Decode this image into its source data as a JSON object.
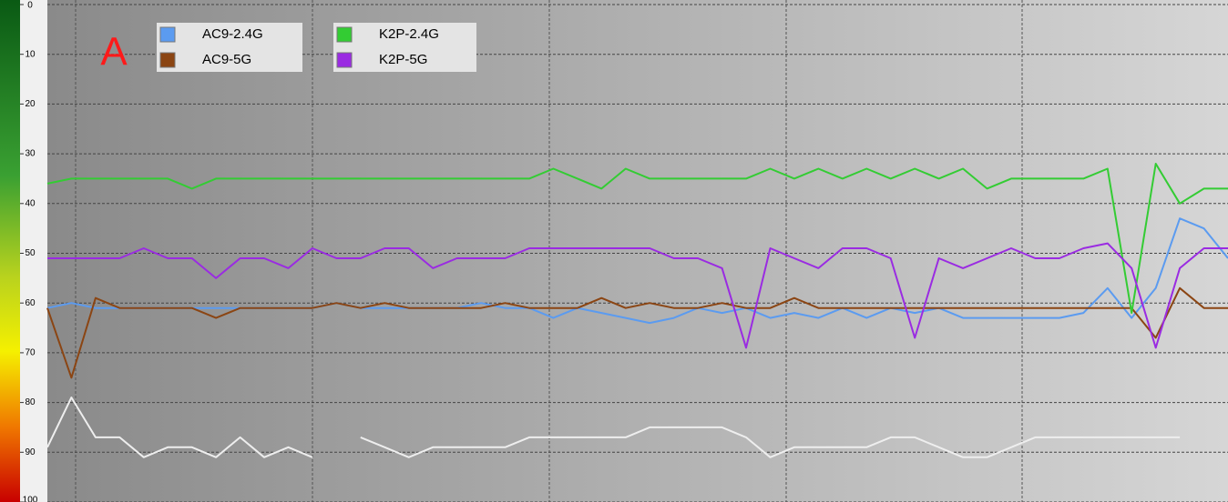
{
  "chart_data": {
    "type": "line",
    "annotation": "A",
    "ylim": [
      0,
      100
    ],
    "yticks": [
      0,
      10,
      20,
      30,
      40,
      50,
      60,
      70,
      80,
      90,
      100
    ],
    "y_inverted": true,
    "grid": true,
    "xlim": [
      0,
      49
    ],
    "x": [
      0,
      1,
      2,
      3,
      4,
      5,
      6,
      7,
      8,
      9,
      10,
      11,
      12,
      13,
      14,
      15,
      16,
      17,
      18,
      19,
      20,
      21,
      22,
      23,
      24,
      25,
      26,
      27,
      28,
      29,
      30,
      31,
      32,
      33,
      34,
      35,
      36,
      37,
      38,
      39,
      40,
      41,
      42,
      43,
      44,
      45,
      46,
      47,
      48,
      49
    ],
    "legend": "top-left",
    "series": [
      {
        "name": "AC9-2.4G",
        "color": "#5b9bf0",
        "values": [
          61,
          60,
          61,
          61,
          61,
          61,
          61,
          61,
          61,
          61,
          61,
          61,
          60,
          61,
          61,
          61,
          61,
          61,
          60,
          61,
          61,
          63,
          61,
          62,
          63,
          64,
          63,
          61,
          62,
          61,
          63,
          62,
          63,
          61,
          63,
          61,
          62,
          61,
          63,
          63,
          63,
          63,
          63,
          62,
          57,
          63,
          57,
          43,
          45,
          51
        ]
      },
      {
        "name": "AC9-5G",
        "color": "#8b4513",
        "values": [
          61,
          75,
          59,
          61,
          61,
          61,
          61,
          63,
          61,
          61,
          61,
          61,
          60,
          61,
          60,
          61,
          61,
          61,
          61,
          60,
          61,
          61,
          61,
          59,
          61,
          60,
          61,
          61,
          60,
          61,
          61,
          59,
          61,
          61,
          61,
          61,
          61,
          61,
          61,
          61,
          61,
          61,
          61,
          61,
          61,
          61,
          67,
          57,
          61,
          61
        ]
      },
      {
        "name": "K2P-2.4G",
        "color": "#33cc33",
        "values": [
          36,
          35,
          35,
          35,
          35,
          35,
          37,
          35,
          35,
          35,
          35,
          35,
          35,
          35,
          35,
          35,
          35,
          35,
          35,
          35,
          35,
          33,
          35,
          37,
          33,
          35,
          35,
          35,
          35,
          35,
          33,
          35,
          33,
          35,
          33,
          35,
          33,
          35,
          33,
          37,
          35,
          35,
          35,
          35,
          33,
          62,
          32,
          40,
          37,
          37
        ]
      },
      {
        "name": "K2P-5G",
        "color": "#9a2be2",
        "values": [
          51,
          51,
          51,
          51,
          49,
          51,
          51,
          55,
          51,
          51,
          53,
          49,
          51,
          51,
          49,
          49,
          53,
          51,
          51,
          51,
          49,
          49,
          49,
          49,
          49,
          49,
          51,
          51,
          53,
          69,
          49,
          51,
          53,
          49,
          49,
          51,
          67,
          51,
          53,
          51,
          49,
          51,
          51,
          49,
          48,
          53,
          69,
          53,
          49,
          49
        ]
      },
      {
        "color": "#eeeeee",
        "values": [
          89,
          79,
          87,
          87,
          91,
          89,
          89,
          91,
          87,
          91,
          89,
          91,
          null,
          87,
          89,
          91,
          89,
          89,
          89,
          89,
          87,
          87,
          87,
          87,
          87,
          85,
          85,
          85,
          85,
          87,
          91,
          89,
          89,
          89,
          89,
          87,
          87,
          89,
          91,
          91,
          89,
          87,
          87,
          87,
          87,
          87,
          87,
          87,
          null,
          null
        ]
      }
    ]
  }
}
